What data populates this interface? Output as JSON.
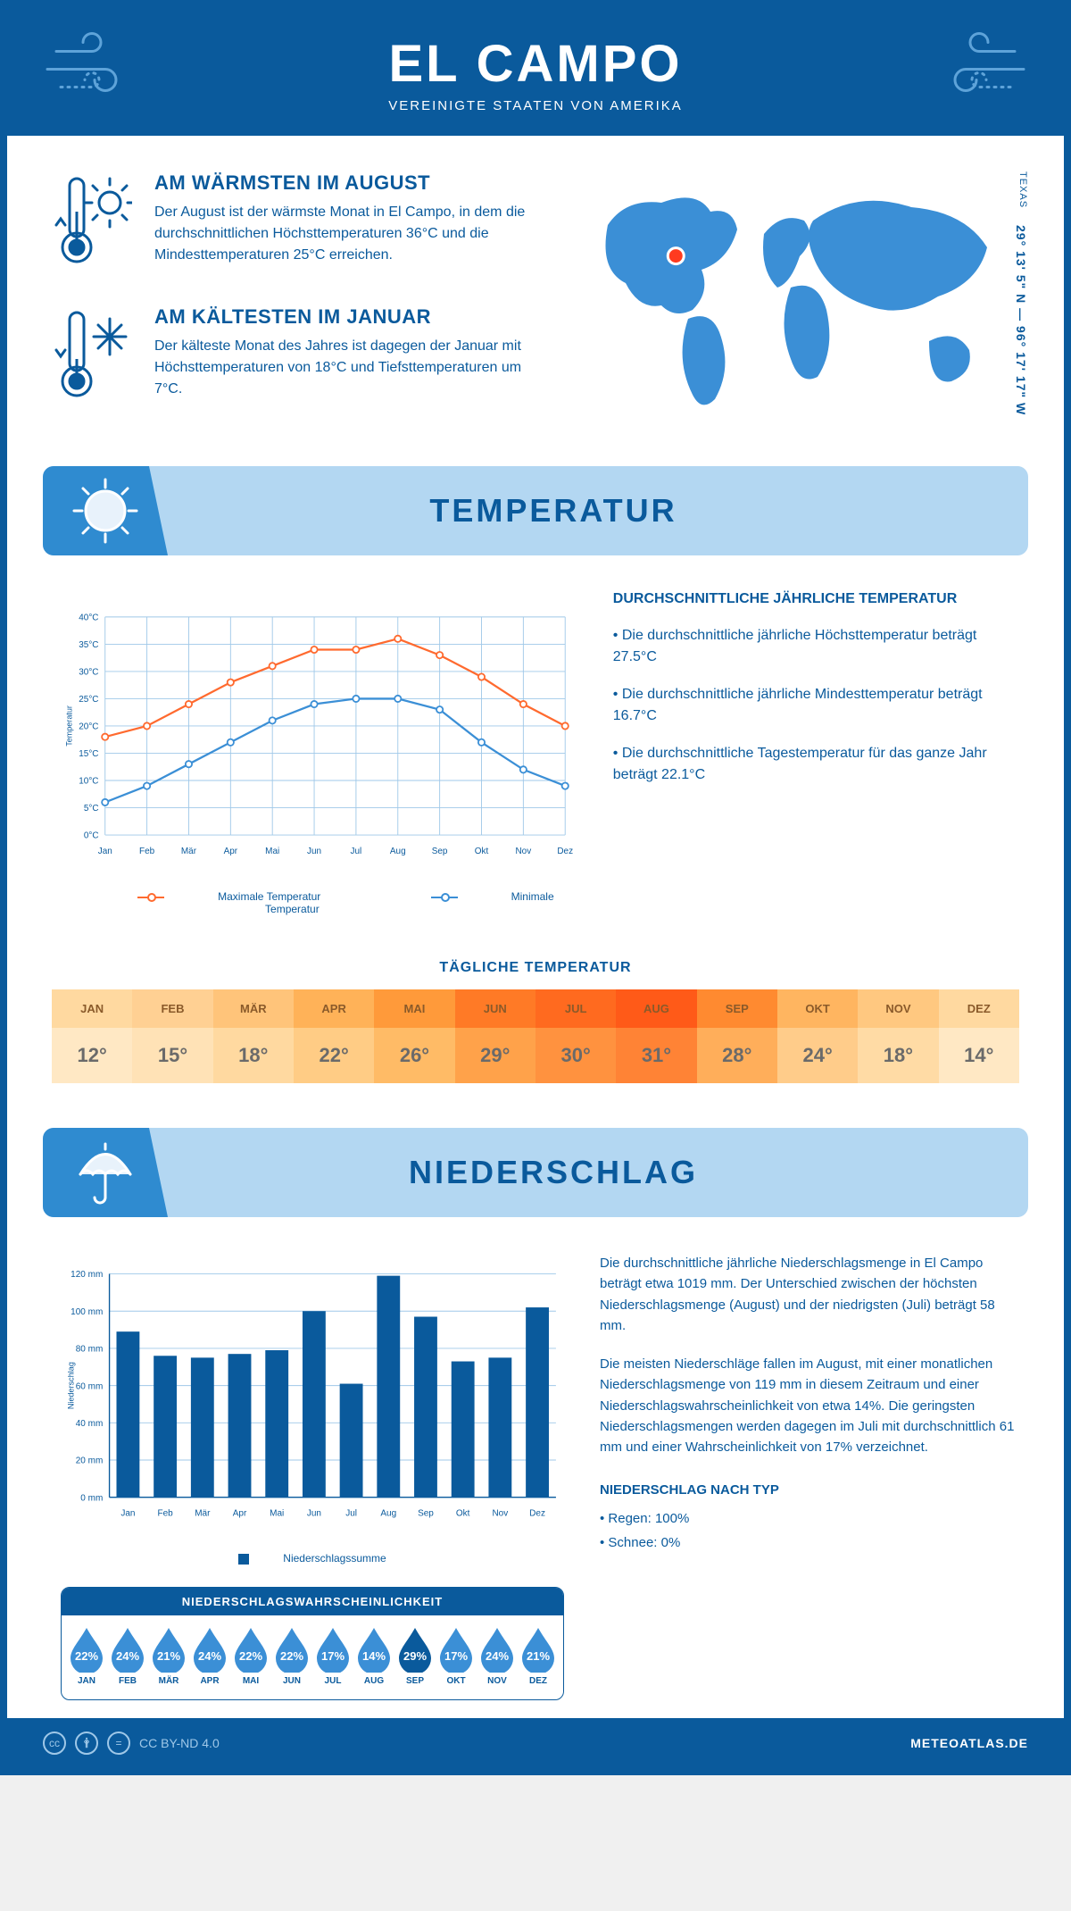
{
  "header": {
    "title": "EL CAMPO",
    "subtitle": "VEREINIGTE STAATEN VON AMERIKA"
  },
  "location": {
    "region": "TEXAS",
    "coords": "29° 13' 5\" N — 96° 17' 17\" W",
    "marker": {
      "lon": -96.3,
      "lat": 29.2
    }
  },
  "facts": {
    "warm": {
      "title": "AM WÄRMSTEN IM AUGUST",
      "text": "Der August ist der wärmste Monat in El Campo, in dem die durchschnittlichen Höchsttemperaturen 36°C und die Mindesttemperaturen 25°C erreichen."
    },
    "cold": {
      "title": "AM KÄLTESTEN IM JANUAR",
      "text": "Der kälteste Monat des Jahres ist dagegen der Januar mit Höchsttemperaturen von 18°C und Tiefsttemperaturen um 7°C."
    }
  },
  "months": [
    "Jan",
    "Feb",
    "Mär",
    "Apr",
    "Mai",
    "Jun",
    "Jul",
    "Aug",
    "Sep",
    "Okt",
    "Nov",
    "Dez"
  ],
  "months_upper": [
    "JAN",
    "FEB",
    "MÄR",
    "APR",
    "MAI",
    "JUN",
    "JUL",
    "AUG",
    "SEP",
    "OKT",
    "NOV",
    "DEZ"
  ],
  "temperature": {
    "section_title": "TEMPERATUR",
    "chart": {
      "type": "line",
      "ylabel": "Temperatur",
      "ylim": [
        0,
        40
      ],
      "ytick_step": 5,
      "y_suffix": "°C",
      "max_series": {
        "label": "Maximale Temperatur",
        "color": "#ff6a2f",
        "values": [
          18,
          20,
          24,
          28,
          31,
          34,
          34,
          36,
          33,
          29,
          24,
          20
        ]
      },
      "min_series": {
        "label": "Minimale Temperatur",
        "color": "#3b8fd6",
        "values": [
          6,
          9,
          13,
          17,
          21,
          24,
          25,
          25,
          23,
          17,
          12,
          9
        ]
      },
      "grid_color": "#9fc8e8",
      "background": "#ffffff"
    },
    "text": {
      "heading": "DURCHSCHNITTLICHE JÄHRLICHE TEMPERATUR",
      "bullets": [
        "• Die durchschnittliche jährliche Höchsttemperatur beträgt 27.5°C",
        "• Die durchschnittliche jährliche Mindesttemperatur beträgt 16.7°C",
        "• Die durchschnittliche Tagestemperatur für das ganze Jahr beträgt 22.1°C"
      ]
    },
    "daily": {
      "title": "TÄGLICHE TEMPERATUR",
      "values": [
        "12°",
        "15°",
        "18°",
        "22°",
        "26°",
        "29°",
        "30°",
        "31°",
        "28°",
        "24°",
        "18°",
        "14°"
      ],
      "colors_top": [
        "#ffd9a0",
        "#ffd093",
        "#ffc47a",
        "#ffb258",
        "#ff9a3a",
        "#ff7a26",
        "#ff6a1f",
        "#ff5a18",
        "#ff8a30",
        "#ffb560",
        "#ffc880",
        "#ffd9a0"
      ],
      "colors_body": [
        "#ffe8c4",
        "#ffe2b6",
        "#ffd9a0",
        "#ffcc85",
        "#ffbb66",
        "#ffa24a",
        "#ff923f",
        "#ff8335",
        "#ffae5a",
        "#ffcc8a",
        "#ffdba5",
        "#ffe8c4"
      ]
    }
  },
  "precipitation": {
    "section_title": "NIEDERSCHLAG",
    "chart": {
      "type": "bar",
      "ylabel": "Niederschlag",
      "ylim": [
        0,
        120
      ],
      "ytick_step": 20,
      "y_suffix": " mm",
      "bar_color": "#0a5a9c",
      "values": [
        89,
        76,
        75,
        77,
        79,
        100,
        61,
        119,
        97,
        73,
        75,
        102
      ],
      "legend": "Niederschlagssumme"
    },
    "text": {
      "p1": "Die durchschnittliche jährliche Niederschlagsmenge in El Campo beträgt etwa 1019 mm. Der Unterschied zwischen der höchsten Niederschlagsmenge (August) und der niedrigsten (Juli) beträgt 58 mm.",
      "p2": "Die meisten Niederschläge fallen im August, mit einer monatlichen Niederschlagsmenge von 119 mm in diesem Zeitraum und einer Niederschlagswahrscheinlichkeit von etwa 14%. Die geringsten Niederschlagsmengen werden dagegen im Juli mit durchschnittlich 61 mm und einer Wahrscheinlichkeit von 17% verzeichnet.",
      "type_heading": "NIEDERSCHLAG NACH TYP",
      "type_lines": [
        "• Regen: 100%",
        "• Schnee: 0%"
      ]
    },
    "probability": {
      "title": "NIEDERSCHLAGSWAHRSCHEINLICHKEIT",
      "values": [
        "22%",
        "24%",
        "21%",
        "24%",
        "22%",
        "22%",
        "17%",
        "14%",
        "29%",
        "17%",
        "24%",
        "21%"
      ],
      "highlight_index": 8,
      "drop_color": "#3b8fd6",
      "drop_highlight": "#0a5a9c"
    }
  },
  "footer": {
    "license": "CC BY-ND 4.0",
    "site": "METEOATLAS.DE"
  },
  "colors": {
    "primary": "#0a5a9c",
    "light_blue": "#b3d7f2",
    "mid_blue": "#3b8fd6"
  }
}
